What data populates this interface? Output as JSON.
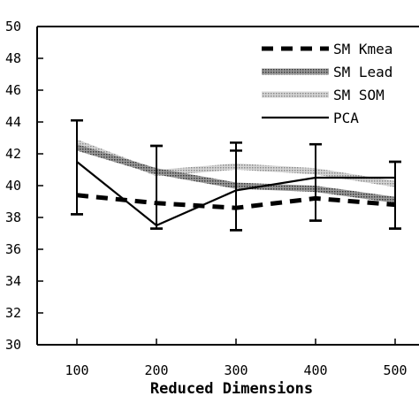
{
  "chart_data": {
    "type": "line",
    "title": "",
    "xlabel": "Reduced Dimensions",
    "ylabel": "",
    "x": [
      100,
      200,
      300,
      400,
      500
    ],
    "xlim": [
      50,
      530
    ],
    "ylim": [
      30,
      50
    ],
    "xticks": [
      100,
      200,
      300,
      400,
      500
    ],
    "yticks": [
      30,
      32,
      34,
      36,
      38,
      40,
      42,
      44,
      46,
      48,
      50
    ],
    "grid": false,
    "legend": "top-right",
    "series": [
      {
        "name": "SM Kmea",
        "style": "dashed-thick",
        "color": "#000000",
        "values": [
          39.4,
          38.9,
          38.6,
          39.2,
          38.8
        ],
        "error_low": [
          38.2,
          37.3,
          37.2,
          37.8,
          37.3
        ],
        "error_high": [
          44.1,
          42.5,
          42.2,
          42.6,
          41.5
        ]
      },
      {
        "name": "SM Lead",
        "style": "dotted-band",
        "color": "#555555",
        "values": [
          42.4,
          40.9,
          40.0,
          39.8,
          39.1
        ]
      },
      {
        "name": "SM SOM",
        "style": "dotted-band-light",
        "color": "#9a9a9a",
        "values": [
          42.7,
          40.8,
          41.2,
          40.9,
          40.1
        ]
      },
      {
        "name": "PCA",
        "style": "solid",
        "color": "#000000",
        "values": [
          41.5,
          37.5,
          39.7,
          40.5,
          40.5
        ],
        "error_low": [
          38.2,
          37.3,
          37.2,
          37.8,
          37.3
        ],
        "error_high": [
          44.1,
          42.5,
          42.7,
          42.6,
          41.5
        ]
      }
    ]
  }
}
